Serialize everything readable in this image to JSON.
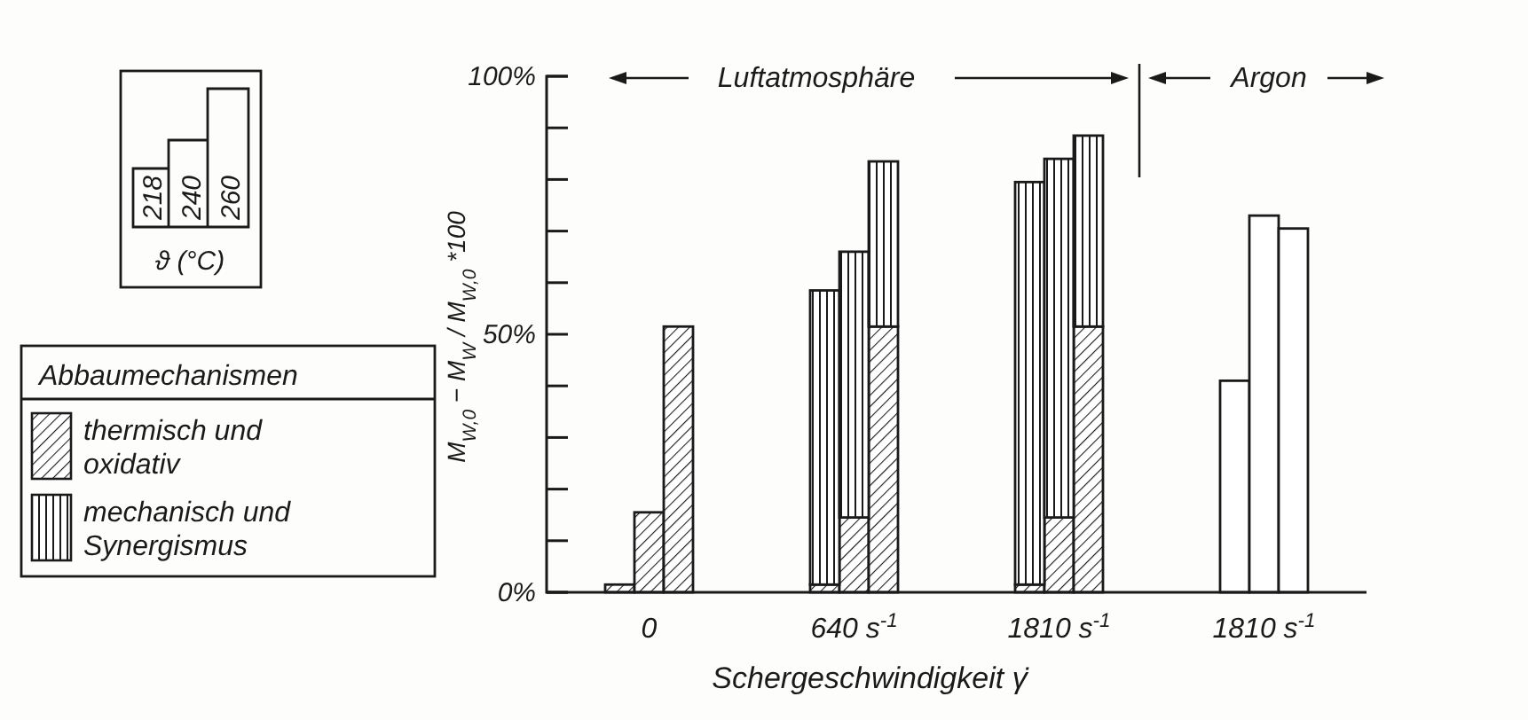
{
  "chart_data": {
    "type": "bar",
    "stacked": true,
    "xlabel": "Schergeschwindigkeit γ̇",
    "ylabel": "M$_{W,0}$ − M$_{W}$ / M$_{W,0}$ *100",
    "legend_title": "Abbaumechanismen",
    "legend": "left",
    "categories": [
      null,
      null,
      null,
      "0",
      null,
      null,
      null,
      null,
      null,
      null,
      "640 s$^{-1}$",
      null,
      null,
      null,
      null,
      null,
      null,
      "1810 s$^{-1}$",
      null,
      null,
      null,
      null,
      null,
      null,
      "1810 s$^{-1}$",
      null,
      null,
      null
    ],
    "series": [
      {
        "name": "thermisch und oxidativ",
        "color": "#1a1a1a",
        "values": [
          null,
          null,
          1.5,
          15.5,
          51.5,
          null,
          null,
          null,
          null,
          1.5,
          14.5,
          51.5,
          null,
          null,
          null,
          null,
          1.5,
          14.5,
          51.5,
          null,
          null,
          null,
          null,
          null,
          null,
          null,
          null,
          null
        ]
      },
      {
        "name": "mechanisch und Synergismus",
        "color": "#1a1a1a",
        "values": [
          null,
          null,
          null,
          null,
          null,
          null,
          null,
          null,
          null,
          57,
          51.5,
          32,
          null,
          null,
          null,
          null,
          78,
          69.5,
          37,
          null,
          null,
          null,
          null,
          null,
          null,
          null,
          null,
          null
        ]
      },
      {
        "color": "#ffffff",
        "values": [
          null,
          null,
          null,
          null,
          null,
          null,
          null,
          null,
          null,
          null,
          null,
          null,
          null,
          null,
          null,
          null,
          null,
          null,
          null,
          null,
          null,
          null,
          null,
          41,
          73,
          70.5,
          null,
          null
        ]
      }
    ],
    "ylim": [
      0,
      100
    ],
    "yticks": [
      {
        "value": 0,
        "label": "0%"
      },
      {
        "value": 10,
        "label": null
      },
      {
        "value": 20,
        "label": null
      },
      {
        "value": 30,
        "label": null
      },
      {
        "value": 40,
        "label": null
      },
      {
        "value": 50,
        "label": "50%"
      },
      {
        "value": 60,
        "label": null
      },
      {
        "value": 70,
        "label": null
      },
      {
        "value": 80,
        "label": null
      },
      {
        "value": 90,
        "label": null
      },
      {
        "value": 100,
        "label": "100%"
      }
    ],
    "annotations": [
      "Luftatmosphäre",
      "Argon",
      "218",
      "240",
      "260",
      "ϑ (°C)"
    ]
  }
}
